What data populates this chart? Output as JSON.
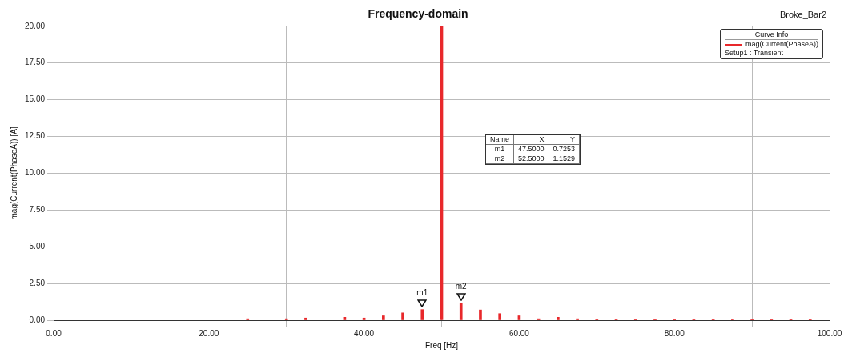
{
  "chart_data": {
    "type": "bar",
    "title": "Frequency-domain",
    "xlabel": "Freq [Hz]",
    "ylabel": "mag(Current(PhaseA)) [A]",
    "legend_title": "Curve Info",
    "legend": "top right",
    "grid": true,
    "x": [
      25,
      30,
      32.5,
      37.5,
      40,
      42.5,
      45,
      47.5,
      50,
      52.5,
      55,
      57.5,
      60,
      62.5,
      65,
      67.5,
      70,
      72.5,
      75,
      77.5,
      80,
      82.5,
      85,
      87.5,
      90,
      92.5,
      95,
      97.5
    ],
    "series": [
      {
        "name": "mag(Current(PhaseA))",
        "color": "#e8282b",
        "values": [
          0.1,
          0.1,
          0.15,
          0.2,
          0.15,
          0.3,
          0.5,
          0.7253,
          20,
          1.1529,
          0.7,
          0.45,
          0.3,
          0.1,
          0.2,
          0.1,
          0.08,
          0.08,
          0.08,
          0.08,
          0.08,
          0.08,
          0.08,
          0.08,
          0.08,
          0.08,
          0.08,
          0.08
        ]
      }
    ],
    "xlim": [
      0,
      100
    ],
    "xticks": [
      {
        "value": 0,
        "label": "0.00"
      },
      {
        "value": 20,
        "label": "20.00"
      },
      {
        "value": 40,
        "label": "40.00"
      },
      {
        "value": 60,
        "label": "60.00"
      },
      {
        "value": 80,
        "label": "80.00"
      },
      {
        "value": 100,
        "label": "100.00"
      }
    ],
    "ylim": [
      0,
      20
    ],
    "yticks": [
      {
        "value": 0,
        "label": "0.00"
      },
      {
        "value": 2.5,
        "label": "2.50"
      },
      {
        "value": 5,
        "label": "5.00"
      },
      {
        "value": 7.5,
        "label": "7.50"
      },
      {
        "value": 10,
        "label": "10.00"
      },
      {
        "value": 12.5,
        "label": "12.50"
      },
      {
        "value": 15,
        "label": "15.00"
      },
      {
        "value": 17.5,
        "label": "17.50"
      },
      {
        "value": 20,
        "label": "20.00"
      }
    ],
    "annotations": [
      "Broke_Bar2",
      "Setup1 : Transient",
      "Name",
      "X",
      "Y",
      "m1",
      "47.5000",
      "0.7253",
      "m2",
      "52.5000",
      "1.1529",
      {
        "text": "m1",
        "x": 47.5,
        "y": 0.7253
      },
      {
        "text": "m2",
        "x": 52.5,
        "y": 1.1529
      }
    ]
  }
}
